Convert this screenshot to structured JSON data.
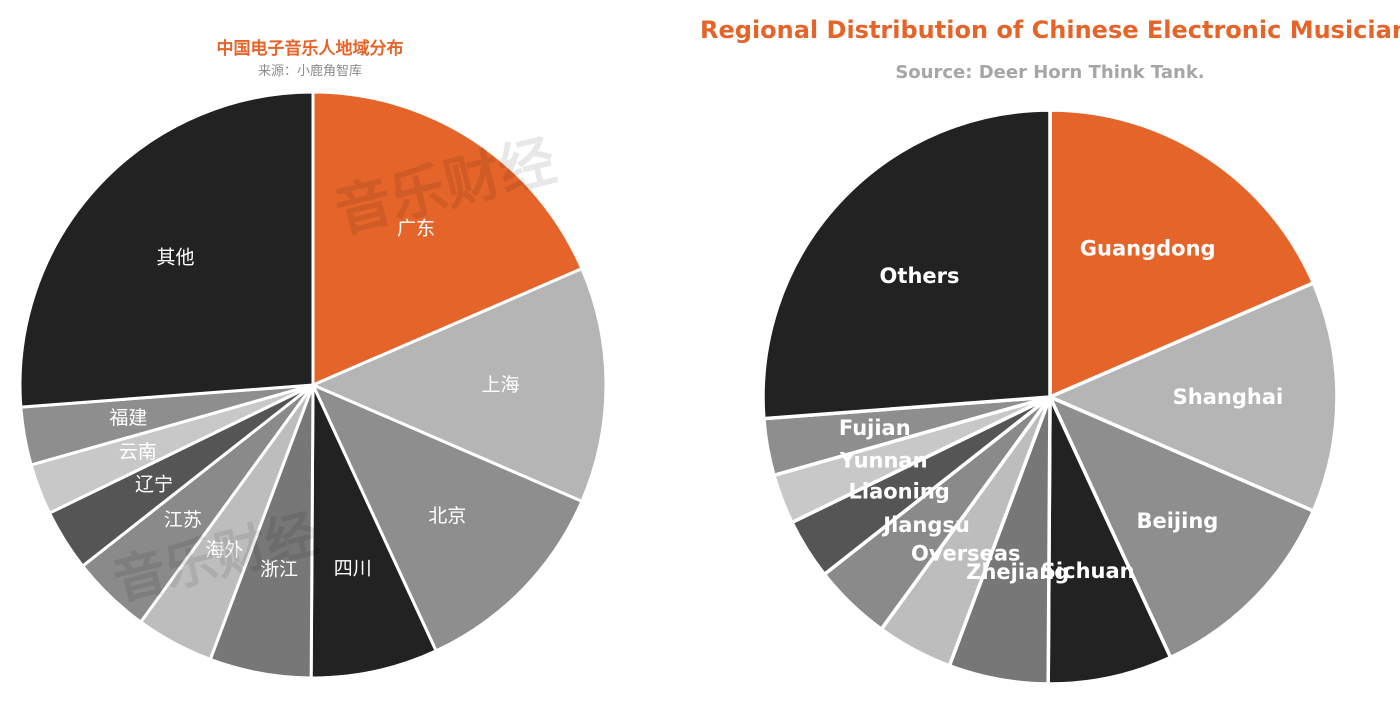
{
  "colors": {
    "accent": "#E4642A"
  },
  "chart_data": [
    {
      "type": "pie",
      "title": "中国电子音乐人地域分布",
      "subtitle": "来源：小鹿角智库",
      "watermark": "音乐财经",
      "start_angle_deg": 0,
      "direction": "clockwise",
      "slices": [
        {
          "label": "广东",
          "value": 18.5,
          "color": "#E4642A"
        },
        {
          "label": "上海",
          "value": 13.0,
          "color": "#B5B5B5"
        },
        {
          "label": "北京",
          "value": 11.6,
          "color": "#8E8E8E"
        },
        {
          "label": "四川",
          "value": 7.0,
          "color": "#222222"
        },
        {
          "label": "浙江",
          "value": 5.6,
          "color": "#777777"
        },
        {
          "label": "海外",
          "value": 4.3,
          "color": "#BDBDBD"
        },
        {
          "label": "江苏",
          "value": 4.4,
          "color": "#8A8A8A"
        },
        {
          "label": "辽宁",
          "value": 3.4,
          "color": "#555555"
        },
        {
          "label": "云南",
          "value": 2.8,
          "color": "#C8C8C8"
        },
        {
          "label": "福建",
          "value": 3.2,
          "color": "#8E8E8E"
        },
        {
          "label": "其他",
          "value": 26.2,
          "color": "#222222"
        }
      ]
    },
    {
      "type": "pie",
      "title": "Regional Distribution of Chinese Electronic Musicians",
      "subtitle": "Source: Deer Horn Think Tank.",
      "start_angle_deg": 0,
      "direction": "clockwise",
      "slices": [
        {
          "label": "Guangdong",
          "value": 18.5,
          "color": "#E4642A"
        },
        {
          "label": "Shanghai",
          "value": 13.0,
          "color": "#B5B5B5"
        },
        {
          "label": "Beijing",
          "value": 11.6,
          "color": "#8E8E8E"
        },
        {
          "label": "Sichuan",
          "value": 7.0,
          "color": "#222222"
        },
        {
          "label": "Zhejiang",
          "value": 5.6,
          "color": "#777777"
        },
        {
          "label": "Overseas",
          "value": 4.3,
          "color": "#BDBDBD"
        },
        {
          "label": "Jiangsu",
          "value": 4.4,
          "color": "#8A8A8A"
        },
        {
          "label": "Liaoning",
          "value": 3.4,
          "color": "#555555"
        },
        {
          "label": "Yunnan",
          "value": 2.8,
          "color": "#C8C8C8"
        },
        {
          "label": "Fujian",
          "value": 3.2,
          "color": "#8E8E8E"
        },
        {
          "label": "Others",
          "value": 26.2,
          "color": "#222222"
        }
      ]
    }
  ]
}
